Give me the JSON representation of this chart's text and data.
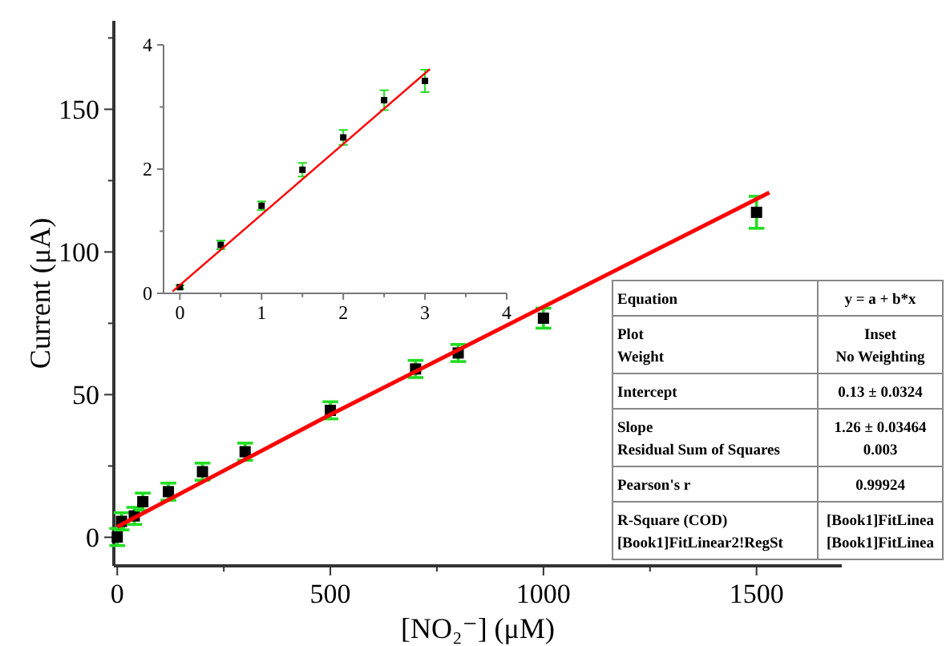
{
  "chart_data": [
    {
      "type": "scatter",
      "xlabel": "[NO₂⁻] (μM)",
      "ylabel": "Current (μA)",
      "xlim": [
        -8,
        1700
      ],
      "ylim": [
        -10,
        181
      ],
      "grid": false,
      "xticks": [
        0,
        {
          "value": 250,
          "label": null
        },
        500,
        {
          "value": 750,
          "label": null
        },
        1000,
        {
          "value": 1250,
          "label": null
        },
        1500
      ],
      "yticks": [
        0,
        {
          "value": 25,
          "label": null
        },
        50,
        {
          "value": 75,
          "label": null
        },
        100,
        {
          "value": 125,
          "label": null
        },
        150,
        {
          "value": 175,
          "label": null
        }
      ],
      "series": [
        {
          "type": "scatter",
          "marker": "square",
          "color": "#000000",
          "x": [
            0,
            10,
            40,
            60,
            120,
            200,
            300,
            500,
            700,
            800,
            1000,
            1500
          ],
          "values": [
            0.1,
            5.6,
            7.5,
            12.5,
            16,
            23,
            30,
            44.5,
            59,
            64.6,
            76.8,
            113.9
          ],
          "errors": [
            3,
            3,
            3,
            3,
            3,
            3,
            3,
            3,
            3,
            3,
            3.5,
            5.6
          ]
        },
        {
          "type": "line",
          "color": "#ff0000",
          "x": [
            0,
            500,
            1530
          ],
          "values": [
            3.7,
            43,
            120.8
          ]
        }
      ]
    },
    {
      "type": "scatter",
      "xlim": [
        -0.2,
        4
      ],
      "ylim": [
        0,
        4
      ],
      "grid": false,
      "xticks": [
        0,
        {
          "value": 0.5,
          "label": null
        },
        1,
        {
          "value": 1.5,
          "label": null
        },
        2,
        {
          "value": 2.5,
          "label": null
        },
        3,
        {
          "value": 3.5,
          "label": null
        },
        4
      ],
      "yticks": [
        0,
        {
          "value": 1,
          "label": null
        },
        2,
        {
          "value": 3,
          "label": null
        },
        4
      ],
      "series": [
        {
          "type": "scatter",
          "marker": "square",
          "color": "#000000",
          "x": [
            0,
            0.5,
            1,
            1.5,
            2,
            2.5,
            3
          ],
          "values": [
            0.1,
            0.78,
            1.41,
            1.99,
            2.51,
            3.11,
            3.42
          ],
          "errors": [
            0.03,
            0.07,
            0.07,
            0.11,
            0.12,
            0.16,
            0.18
          ]
        },
        {
          "type": "line",
          "color": "#ff0000",
          "x": [
            -0.09,
            3.06
          ],
          "values": [
            0.03,
            3.61
          ]
        }
      ]
    },
    {
      "type": "other",
      "annotations": [
        "Equation",
        "y = a + b*x",
        "Plot",
        "Weight",
        "Inset",
        "No Weighting",
        "Intercept",
        "0.13 ± 0.0324",
        "Slope",
        "Residual Sum of Squares",
        "1.26 ± 0.03464",
        "0.003",
        "Pearson's r",
        "0.99924",
        "R-Square (COD)",
        "[Book1]FitLinear2!RegSt",
        "[Book1]FitLinea",
        "[Book1]FitLinea"
      ]
    }
  ]
}
